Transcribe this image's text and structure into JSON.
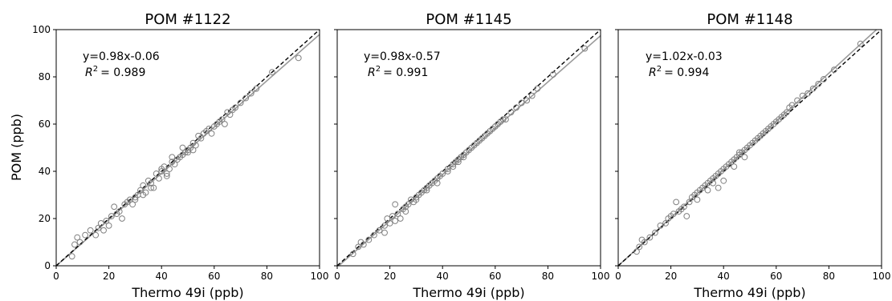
{
  "chart_data": [
    {
      "type": "scatter",
      "title": "POM #1122",
      "xlabel": "Thermo 49i (ppb)",
      "ylabel": "POM (ppb)",
      "xlim": [
        0,
        100
      ],
      "ylim": [
        0,
        100
      ],
      "xticks": [
        "0",
        "20",
        "40",
        "60",
        "80",
        "100"
      ],
      "yticks": [
        "0",
        "20",
        "40",
        "60",
        "80",
        "100"
      ],
      "annotation": {
        "equation": "y=0.98x-0.06",
        "r2_label": "R",
        "r2_value": "= 0.989"
      },
      "fit": {
        "slope": 0.98,
        "intercept": -0.06
      },
      "one_to_one": true,
      "points": [
        [
          6,
          4
        ],
        [
          7,
          9
        ],
        [
          8,
          12
        ],
        [
          9,
          10
        ],
        [
          11,
          13
        ],
        [
          13,
          15
        ],
        [
          15,
          13
        ],
        [
          16,
          16
        ],
        [
          17,
          18
        ],
        [
          18,
          15
        ],
        [
          19,
          19
        ],
        [
          20,
          17
        ],
        [
          21,
          21
        ],
        [
          22,
          25
        ],
        [
          23,
          22
        ],
        [
          24,
          23
        ],
        [
          25,
          20
        ],
        [
          26,
          26
        ],
        [
          27,
          27
        ],
        [
          28,
          28
        ],
        [
          29,
          26
        ],
        [
          30,
          29
        ],
        [
          31,
          30
        ],
        [
          32,
          32
        ],
        [
          33,
          34
        ],
        [
          34,
          31
        ],
        [
          35,
          36
        ],
        [
          36,
          35
        ],
        [
          37,
          33
        ],
        [
          38,
          39
        ],
        [
          39,
          37
        ],
        [
          40,
          40
        ],
        [
          41,
          42
        ],
        [
          42,
          39
        ],
        [
          43,
          41
        ],
        [
          44,
          44
        ],
        [
          45,
          43
        ],
        [
          46,
          45
        ],
        [
          47,
          46
        ],
        [
          48,
          47
        ],
        [
          49,
          48
        ],
        [
          50,
          49
        ],
        [
          51,
          50
        ],
        [
          52,
          52
        ],
        [
          53,
          51
        ],
        [
          54,
          55
        ],
        [
          55,
          54
        ],
        [
          56,
          56
        ],
        [
          57,
          57
        ],
        [
          58,
          58
        ],
        [
          59,
          56
        ],
        [
          60,
          59
        ],
        [
          61,
          60
        ],
        [
          62,
          61
        ],
        [
          63,
          62
        ],
        [
          64,
          60
        ],
        [
          65,
          65
        ],
        [
          66,
          64
        ],
        [
          67,
          66
        ],
        [
          68,
          67
        ],
        [
          70,
          69
        ],
        [
          72,
          71
        ],
        [
          74,
          73
        ],
        [
          76,
          75
        ],
        [
          82,
          82
        ],
        [
          92,
          88
        ],
        [
          48,
          50
        ],
        [
          52,
          49
        ],
        [
          42,
          38
        ],
        [
          36,
          33
        ],
        [
          30,
          28
        ],
        [
          40,
          41
        ],
        [
          44,
          46
        ],
        [
          33,
          30
        ],
        [
          50,
          48
        ]
      ]
    },
    {
      "type": "scatter",
      "title": "POM #1145",
      "xlabel": "Thermo 49i (ppb)",
      "xlim": [
        0,
        100
      ],
      "ylim": [
        0,
        100
      ],
      "xticks": [
        "0",
        "20",
        "40",
        "60",
        "80",
        "100"
      ],
      "annotation": {
        "equation": "y=0.98x-0.57",
        "r2_label": "R",
        "r2_value": "= 0.991"
      },
      "fit": {
        "slope": 0.98,
        "intercept": -0.57
      },
      "one_to_one": true,
      "points": [
        [
          6,
          5
        ],
        [
          8,
          8
        ],
        [
          9,
          10
        ],
        [
          10,
          9
        ],
        [
          12,
          11
        ],
        [
          14,
          13
        ],
        [
          16,
          15
        ],
        [
          18,
          17
        ],
        [
          19,
          20
        ],
        [
          20,
          18
        ],
        [
          21,
          21
        ],
        [
          22,
          26
        ],
        [
          23,
          22
        ],
        [
          24,
          20
        ],
        [
          25,
          24
        ],
        [
          26,
          25
        ],
        [
          27,
          26
        ],
        [
          28,
          28
        ],
        [
          29,
          27
        ],
        [
          30,
          29
        ],
        [
          31,
          30
        ],
        [
          32,
          31
        ],
        [
          33,
          32
        ],
        [
          34,
          33
        ],
        [
          35,
          34
        ],
        [
          36,
          35
        ],
        [
          37,
          36
        ],
        [
          38,
          37
        ],
        [
          39,
          38
        ],
        [
          40,
          39
        ],
        [
          42,
          40
        ],
        [
          44,
          42
        ],
        [
          45,
          44
        ],
        [
          46,
          45
        ],
        [
          47,
          46
        ],
        [
          48,
          47
        ],
        [
          49,
          48
        ],
        [
          50,
          49
        ],
        [
          51,
          50
        ],
        [
          52,
          51
        ],
        [
          53,
          52
        ],
        [
          54,
          53
        ],
        [
          55,
          54
        ],
        [
          56,
          55
        ],
        [
          57,
          56
        ],
        [
          58,
          57
        ],
        [
          59,
          58
        ],
        [
          60,
          59
        ],
        [
          61,
          60
        ],
        [
          62,
          61
        ],
        [
          63,
          62
        ],
        [
          64,
          62
        ],
        [
          66,
          65
        ],
        [
          68,
          67
        ],
        [
          70,
          69
        ],
        [
          72,
          70
        ],
        [
          74,
          72
        ],
        [
          76,
          75
        ],
        [
          82,
          81
        ],
        [
          94,
          92
        ],
        [
          44,
          43
        ],
        [
          46,
          44
        ],
        [
          48,
          46
        ],
        [
          42,
          41
        ],
        [
          38,
          35
        ],
        [
          34,
          32
        ],
        [
          30,
          28
        ],
        [
          26,
          23
        ],
        [
          22,
          19
        ],
        [
          18,
          14
        ]
      ]
    },
    {
      "type": "scatter",
      "title": "POM #1148",
      "xlabel": "Thermo 49i (ppb)",
      "xlim": [
        0,
        100
      ],
      "ylim": [
        0,
        100
      ],
      "xticks": [
        "0",
        "20",
        "40",
        "60",
        "80",
        "100"
      ],
      "annotation": {
        "equation": "y=1.02x-0.03",
        "r2_label": "R",
        "r2_value": "= 0.994"
      },
      "fit": {
        "slope": 1.02,
        "intercept": -0.03
      },
      "one_to_one": true,
      "points": [
        [
          7,
          6
        ],
        [
          8,
          8
        ],
        [
          9,
          11
        ],
        [
          10,
          10
        ],
        [
          12,
          12
        ],
        [
          14,
          14
        ],
        [
          16,
          17
        ],
        [
          18,
          18
        ],
        [
          19,
          20
        ],
        [
          20,
          21
        ],
        [
          21,
          22
        ],
        [
          22,
          27
        ],
        [
          23,
          23
        ],
        [
          24,
          24
        ],
        [
          25,
          25
        ],
        [
          26,
          21
        ],
        [
          27,
          27
        ],
        [
          28,
          29
        ],
        [
          29,
          30
        ],
        [
          30,
          31
        ],
        [
          31,
          32
        ],
        [
          32,
          33
        ],
        [
          33,
          34
        ],
        [
          34,
          35
        ],
        [
          35,
          36
        ],
        [
          36,
          37
        ],
        [
          37,
          38
        ],
        [
          38,
          39
        ],
        [
          39,
          40
        ],
        [
          40,
          41
        ],
        [
          41,
          42
        ],
        [
          42,
          43
        ],
        [
          43,
          44
        ],
        [
          44,
          45
        ],
        [
          45,
          46
        ],
        [
          46,
          47
        ],
        [
          47,
          48
        ],
        [
          48,
          49
        ],
        [
          49,
          50
        ],
        [
          50,
          51
        ],
        [
          51,
          52
        ],
        [
          52,
          53
        ],
        [
          53,
          54
        ],
        [
          54,
          55
        ],
        [
          55,
          56
        ],
        [
          56,
          57
        ],
        [
          57,
          58
        ],
        [
          58,
          59
        ],
        [
          59,
          60
        ],
        [
          60,
          61
        ],
        [
          61,
          62
        ],
        [
          62,
          63
        ],
        [
          63,
          64
        ],
        [
          64,
          65
        ],
        [
          65,
          67
        ],
        [
          66,
          68
        ],
        [
          68,
          70
        ],
        [
          70,
          72
        ],
        [
          72,
          73
        ],
        [
          74,
          75
        ],
        [
          76,
          77
        ],
        [
          78,
          79
        ],
        [
          82,
          83
        ],
        [
          92,
          94
        ],
        [
          38,
          33
        ],
        [
          40,
          36
        ],
        [
          44,
          42
        ],
        [
          46,
          48
        ],
        [
          48,
          46
        ],
        [
          30,
          28
        ],
        [
          34,
          32
        ],
        [
          36,
          35
        ]
      ]
    }
  ]
}
